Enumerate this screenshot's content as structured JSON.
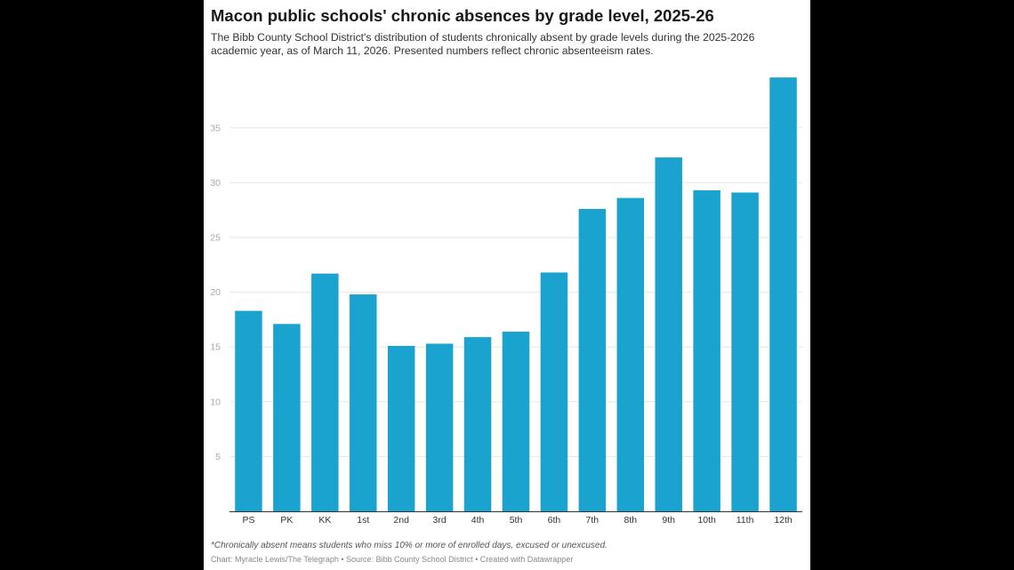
{
  "title": "Macon public schools' chronic absences by grade level, 2025-26",
  "subtitle": "The Bibb County School District's distribution of students chronically absent by grade levels during the 2025-2026 academic year, as of March 11, 2026. Presented numbers reflect chronic absenteeism rates.",
  "note": "*Chronically absent means students who miss 10% or more of enrolled days, excused or unexcused.",
  "credit": "Chart: Myracle Lewis/The Telegraph • Source: Bibb County School District • Created with Datawrapper",
  "colors": {
    "bar": "#1ba3cf",
    "grid": "#e6e6e6",
    "tick": "#aaaaaa",
    "axis": "#333333"
  },
  "chart_data": {
    "type": "bar",
    "title": "Macon public schools' chronic absences by grade level, 2025-26",
    "xlabel": "",
    "ylabel": "",
    "categories": [
      "PS",
      "PK",
      "KK",
      "1st",
      "2nd",
      "3rd",
      "4th",
      "5th",
      "6th",
      "7th",
      "8th",
      "9th",
      "10th",
      "11th",
      "12th"
    ],
    "values": [
      18.3,
      17.1,
      21.7,
      19.8,
      15.1,
      15.3,
      15.9,
      16.4,
      21.8,
      27.6,
      28.6,
      32.3,
      29.3,
      29.1,
      39.6
    ],
    "yticks": [
      5,
      10,
      15,
      20,
      25,
      30,
      35
    ],
    "ylim": [
      0,
      40
    ],
    "grid": true
  }
}
